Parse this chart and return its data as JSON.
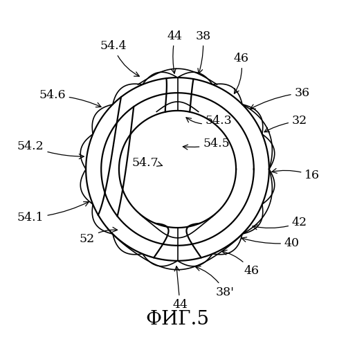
{
  "title": "ФИГ.5",
  "bg_color": "#ffffff",
  "line_color": "#000000",
  "outer_r": 0.78,
  "annulus_outer_r": 0.72,
  "annulus_inner_r": 0.6,
  "inner_r": 0.46,
  "title_fontsize": 20,
  "label_fontsize": 12.5
}
